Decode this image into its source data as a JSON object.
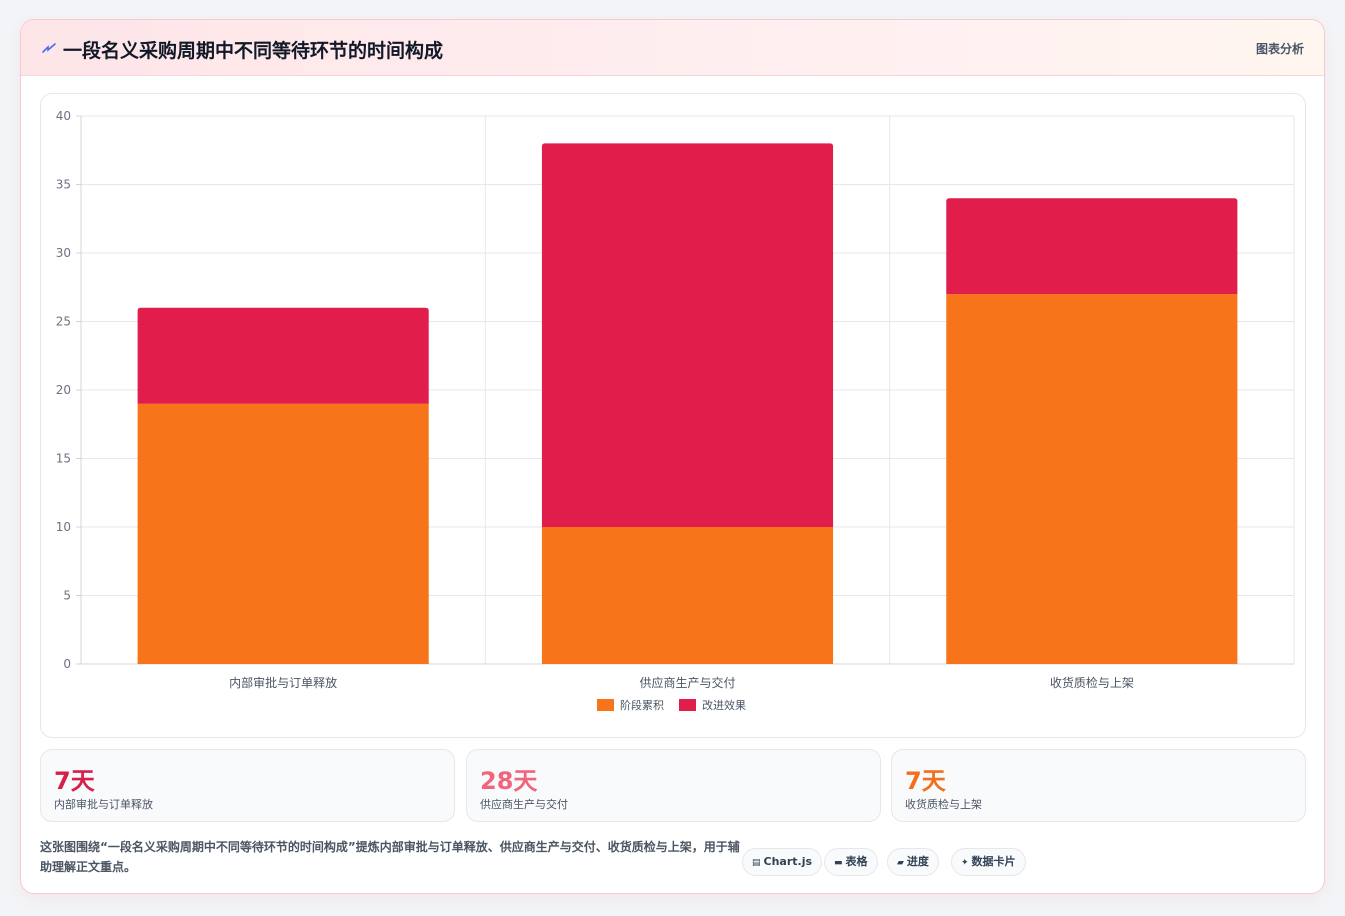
{
  "header": {
    "title": "一段名义采购周期中不同等待环节的时间构成",
    "title_icon": "lightning-icon",
    "tag": "图表分析"
  },
  "colors": {
    "stage_accumulated": "#f7741a",
    "improvement": "#e01d4b",
    "stat_1": "#d61f4a",
    "stat_2": "#f2647b",
    "stat_3": "#f2701b"
  },
  "chart_data": {
    "type": "bar",
    "stacked": true,
    "categories": [
      "内部审批与订单释放",
      "供应商生产与交付",
      "收货质检与上架"
    ],
    "series": [
      {
        "name": "阶段累积",
        "values": [
          19,
          10,
          27
        ]
      },
      {
        "name": "改进效果",
        "values": [
          7,
          28,
          7
        ]
      }
    ],
    "ylim": [
      0,
      40
    ],
    "yticks": [
      0,
      5,
      10,
      15,
      20,
      25,
      30,
      35,
      40
    ],
    "grid": true,
    "legend": "bottom",
    "title": "",
    "xlabel": "",
    "ylabel": ""
  },
  "stats": [
    {
      "value": "7天",
      "label": "内部审批与订单释放"
    },
    {
      "value": "28天",
      "label": "供应商生产与交付"
    },
    {
      "value": "7天",
      "label": "收货质检与上架"
    }
  ],
  "description": "这张图围绕“一段名义采购周期中不同等待环节的时间构成”提炼内部审批与订单释放、供应商生产与交付、收货质检与上架，用于辅助理解正文重点。",
  "chips": [
    {
      "icon": "chart-icon",
      "label": "Chart.js"
    },
    {
      "icon": "table-icon",
      "label": "表格"
    },
    {
      "icon": "progress-icon",
      "label": "进度"
    },
    {
      "icon": "sparkle-icon",
      "label": "数据卡片"
    }
  ]
}
